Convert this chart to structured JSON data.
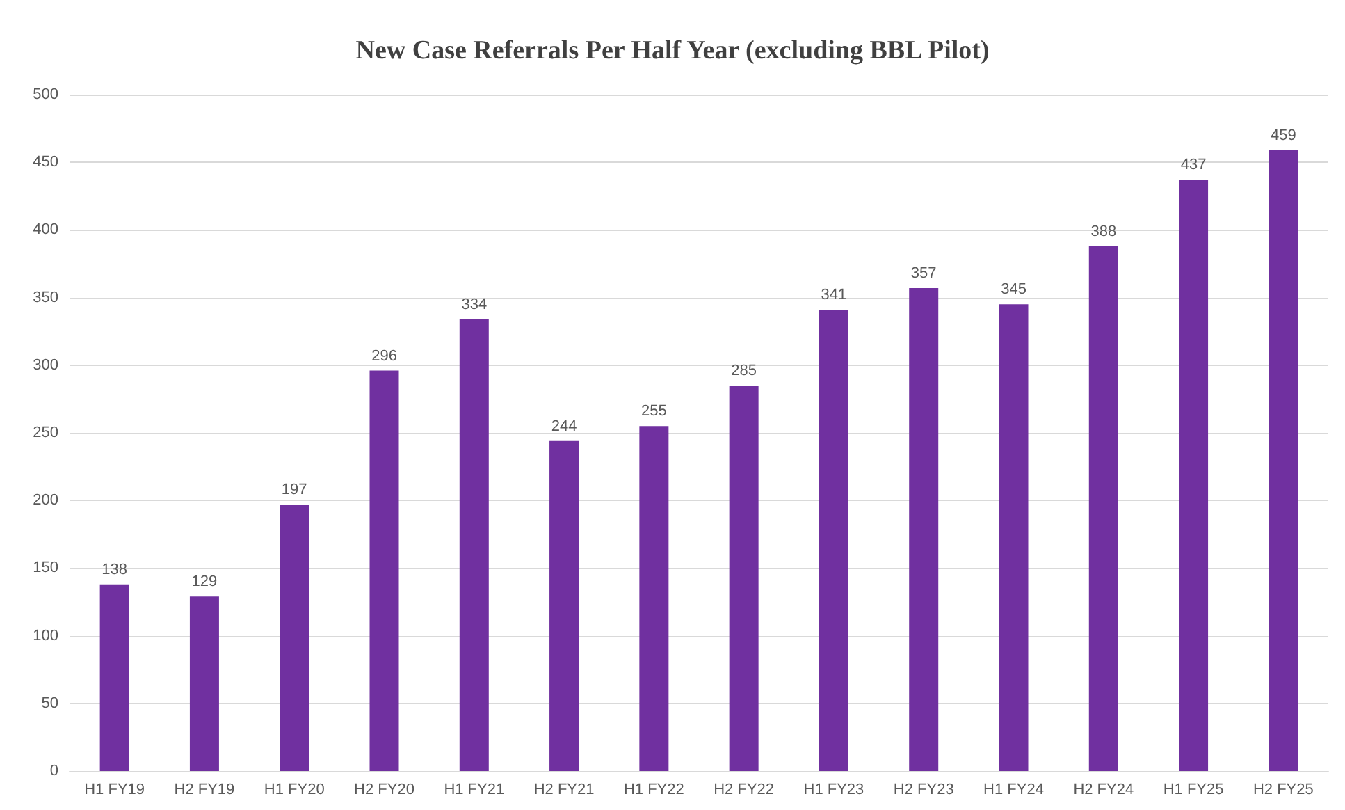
{
  "chart_data": {
    "type": "bar",
    "title": "New Case Referrals Per Half Year (excluding BBL Pilot)",
    "categories": [
      "H1 FY19",
      "H2 FY19",
      "H1 FY20",
      "H2 FY20",
      "H1 FY21",
      "H2 FY21",
      "H1 FY22",
      "H2 FY22",
      "H1 FY23",
      "H2 FY23",
      "H1 FY24",
      "H2 FY24",
      "H1 FY25",
      "H2 FY25"
    ],
    "values": [
      138,
      129,
      197,
      296,
      334,
      244,
      255,
      285,
      341,
      357,
      345,
      388,
      437,
      459
    ],
    "color": "#7030a0",
    "ylim": [
      0,
      500
    ],
    "yticks": [
      0,
      50,
      100,
      150,
      200,
      250,
      300,
      350,
      400,
      450,
      500
    ],
    "grid": "y",
    "data_labels": true
  }
}
